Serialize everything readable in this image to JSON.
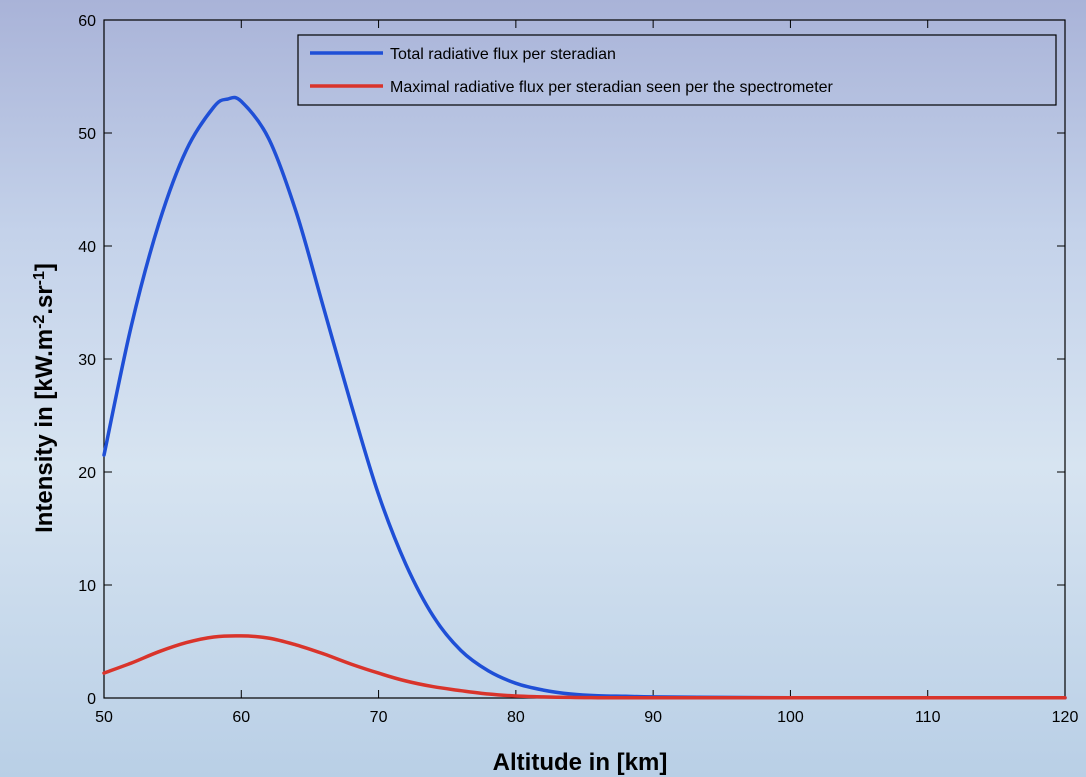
{
  "colors": {
    "series_total": "#1f4fd6",
    "series_max": "#d9342b",
    "axes": "#000000"
  },
  "chart_data": {
    "type": "line",
    "title": "",
    "xlabel": "Altitude in [km]",
    "ylabel": {
      "prefix": "Intensity in [kW.m",
      "exp1": "-2",
      "mid": ".sr",
      "exp2": "-1",
      "suffix": "]"
    },
    "xlim": [
      50,
      120
    ],
    "ylim": [
      0,
      60
    ],
    "xticks": [
      "50",
      "60",
      "70",
      "80",
      "90",
      "100",
      "110",
      "120"
    ],
    "yticks": [
      "0",
      "10",
      "20",
      "30",
      "40",
      "50",
      "60"
    ],
    "grid": false,
    "legend_position": "top-right",
    "series": [
      {
        "name": "Total radiative flux per steradian",
        "color": "blue",
        "x": [
          50,
          52,
          54,
          56,
          58,
          59,
          60,
          62,
          64,
          66,
          68,
          70,
          72,
          74,
          76,
          78,
          80,
          82,
          84,
          86,
          88,
          90,
          95,
          100,
          110,
          120
        ],
        "y": [
          21.5,
          33,
          42,
          48.5,
          52.3,
          53.0,
          52.8,
          49.5,
          43,
          34.5,
          26,
          18,
          11.8,
          7.2,
          4.2,
          2.4,
          1.3,
          0.7,
          0.35,
          0.2,
          0.15,
          0.1,
          0.05,
          0.03,
          0.02,
          0.02
        ]
      },
      {
        "name": "Maximal radiative flux per steradian seen per the spectrometer",
        "color": "red",
        "x": [
          50,
          52,
          54,
          56,
          58,
          60,
          62,
          64,
          66,
          68,
          70,
          72,
          74,
          76,
          78,
          80,
          82,
          84,
          86,
          90,
          100,
          110,
          120
        ],
        "y": [
          2.2,
          3.1,
          4.1,
          4.9,
          5.4,
          5.5,
          5.3,
          4.7,
          3.9,
          3.0,
          2.2,
          1.5,
          1.0,
          0.65,
          0.35,
          0.18,
          0.1,
          0.05,
          0.03,
          0.02,
          0.02,
          0.02,
          0.02
        ]
      }
    ]
  }
}
